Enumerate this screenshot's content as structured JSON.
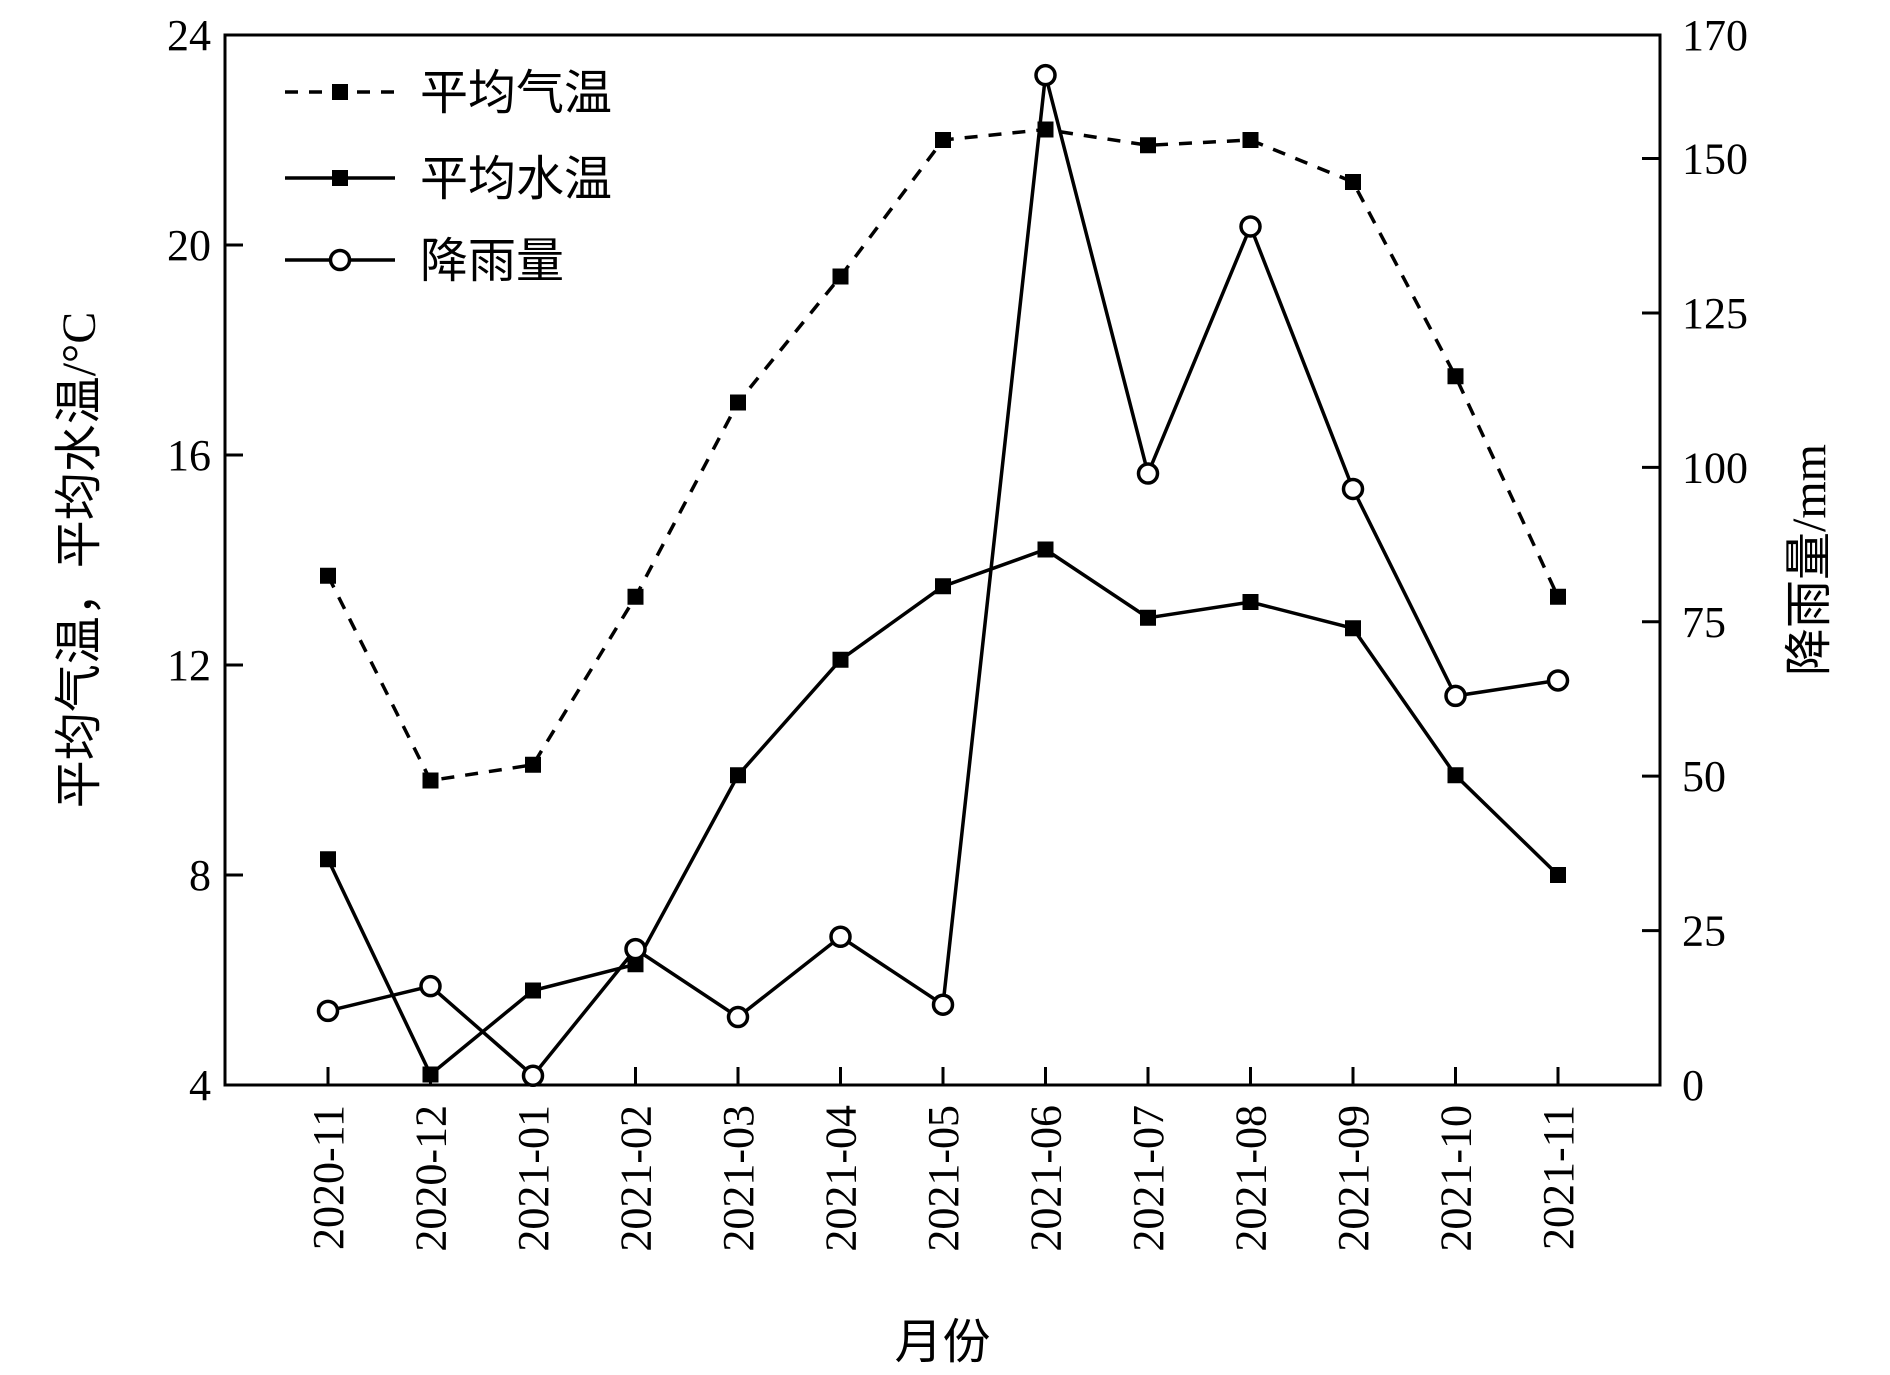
{
  "chart_data": {
    "type": "line",
    "xlabel": "月份",
    "ylabel_left": "平均气温，平均水温/°C",
    "ylabel_right": "降雨量/mm",
    "categories": [
      "2020-11",
      "2020-12",
      "2021-01",
      "2021-02",
      "2021-03",
      "2021-04",
      "2021-05",
      "2021-06",
      "2021-07",
      "2021-08",
      "2021-09",
      "2021-10",
      "2021-11"
    ],
    "left_axis": {
      "range": [
        4,
        24
      ],
      "ticks": [
        "4",
        "8",
        "12",
        "16",
        "20",
        "24"
      ]
    },
    "right_axis": {
      "range": [
        0,
        170
      ],
      "ticks": [
        "0",
        "25",
        "50",
        "75",
        "100",
        "125",
        "150",
        "170"
      ]
    },
    "series": [
      {
        "name": "平均气温",
        "axis": "left",
        "style": "dashed",
        "marker": "filled-square",
        "values": [
          13.7,
          9.8,
          10.1,
          13.3,
          17.0,
          19.4,
          22.0,
          22.2,
          21.9,
          22.0,
          21.2,
          17.5,
          13.3
        ]
      },
      {
        "name": "平均水温",
        "axis": "left",
        "style": "solid",
        "marker": "filled-square",
        "values": [
          8.3,
          4.2,
          5.8,
          6.3,
          9.9,
          12.1,
          13.5,
          14.2,
          12.9,
          13.2,
          12.7,
          9.9,
          8.0
        ]
      },
      {
        "name": "降雨量",
        "axis": "right",
        "style": "solid",
        "marker": "open-circle",
        "values": [
          12,
          16,
          1.5,
          22,
          11,
          24,
          13,
          163.5,
          99,
          139,
          96.5,
          63,
          65.5
        ]
      }
    ],
    "legend_position": "top-left",
    "grid": false
  }
}
